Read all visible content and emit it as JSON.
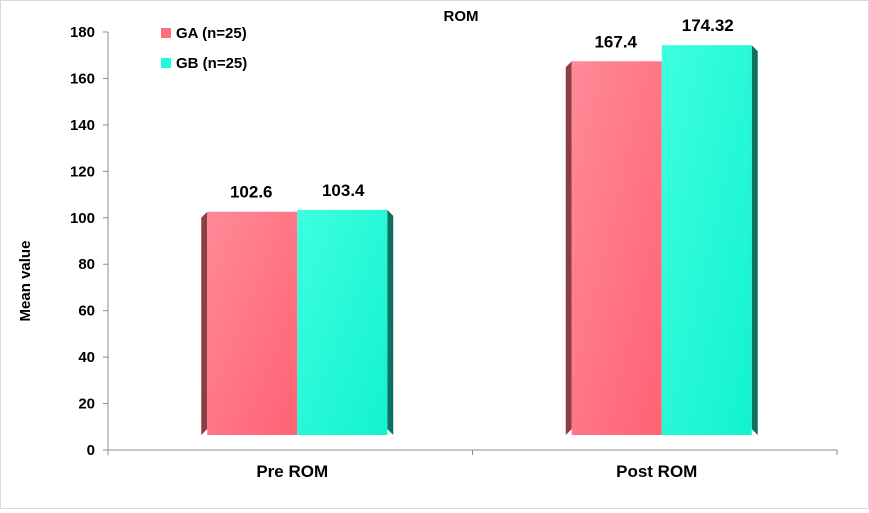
{
  "chart_data": {
    "type": "bar",
    "title": "ROM",
    "xlabel": "",
    "ylabel": "Mean value",
    "categories": [
      "Pre ROM",
      "Post ROM"
    ],
    "series": [
      {
        "name": "GA (n=25)",
        "values": [
          102.6,
          167.4
        ],
        "color": "#ff6f7f"
      },
      {
        "name": "GB (n=25)",
        "values": [
          103.4,
          174.32
        ],
        "color": "#1dfcd8"
      }
    ],
    "value_labels": [
      [
        "102.6",
        "167.4"
      ],
      [
        "103.4",
        "174.32"
      ]
    ],
    "ylim": [
      0,
      180
    ],
    "yticks": [
      "0",
      "20",
      "40",
      "60",
      "80",
      "100",
      "120",
      "140",
      "160",
      "180"
    ],
    "grid": false,
    "legend": "top-left"
  }
}
